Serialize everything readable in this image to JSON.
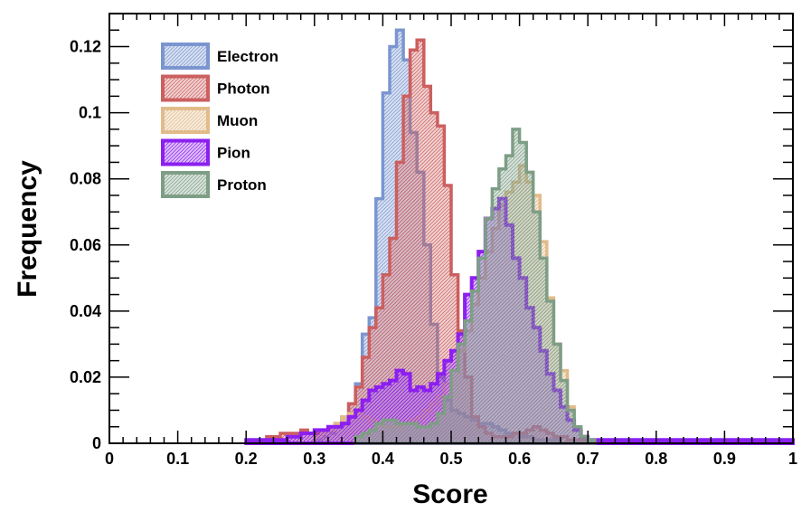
{
  "chart_data": {
    "type": "histogram",
    "title": "",
    "xlabel": "Score",
    "ylabel": "Frequency",
    "xlim": [
      0,
      1
    ],
    "ylim": [
      0,
      0.13
    ],
    "bin_width": 0.01,
    "x_ticks": [
      {
        "value": 0,
        "label": "0"
      },
      {
        "value": 0.1,
        "label": "0.1"
      },
      {
        "value": 0.2,
        "label": "0.2"
      },
      {
        "value": 0.3,
        "label": "0.3"
      },
      {
        "value": 0.4,
        "label": "0.4"
      },
      {
        "value": 0.5,
        "label": "0.5"
      },
      {
        "value": 0.6,
        "label": "0.6"
      },
      {
        "value": 0.7,
        "label": "0.7"
      },
      {
        "value": 0.8,
        "label": "0.8"
      },
      {
        "value": 0.9,
        "label": "0.9"
      },
      {
        "value": 1,
        "label": "1"
      }
    ],
    "y_ticks": [
      {
        "value": 0,
        "label": "0"
      },
      {
        "value": 0.02,
        "label": "0.02"
      },
      {
        "value": 0.04,
        "label": "0.04"
      },
      {
        "value": 0.06,
        "label": "0.06"
      },
      {
        "value": 0.08,
        "label": "0.08"
      },
      {
        "value": 0.1,
        "label": "0.1"
      },
      {
        "value": 0.12,
        "label": "0.12"
      }
    ],
    "legend_position": "top-left",
    "grid": false,
    "series": [
      {
        "name": "Electron",
        "color": "#7b96cf",
        "bins_start": 0.3,
        "values": [
          0.001,
          0.002,
          0.003,
          0.005,
          0.008,
          0.012,
          0.018,
          0.033,
          0.038,
          0.074,
          0.106,
          0.12,
          0.125,
          0.116,
          0.094,
          0.082,
          0.06,
          0.036,
          0.02,
          0.013,
          0.01,
          0.009,
          0.008,
          0.007,
          0.006,
          0.006,
          0.005,
          0.004,
          0.003,
          0.003,
          0.002,
          0.002,
          0.001,
          0.001,
          0.001,
          0.001
        ]
      },
      {
        "name": "Photon",
        "color": "#cc5f5f",
        "bins_start": 0.22,
        "values": [
          0.001,
          0.002,
          0.002,
          0.003,
          0.003,
          0.003,
          0.004,
          0.003,
          0.003,
          0.004,
          0.005,
          0.006,
          0.008,
          0.012,
          0.017,
          0.026,
          0.035,
          0.041,
          0.051,
          0.062,
          0.085,
          0.105,
          0.119,
          0.122,
          0.108,
          0.1,
          0.096,
          0.078,
          0.051,
          0.034,
          0.02,
          0.008,
          0.005,
          0.003,
          0.002,
          0.002,
          0.002,
          0.003,
          0.003,
          0.004,
          0.005,
          0.004,
          0.003,
          0.002,
          0.002,
          0.001,
          0.001,
          0.001,
          0.001,
          0.001,
          0.001,
          0.001
        ]
      },
      {
        "name": "Muon",
        "color": "#e2bb8a",
        "bins_start": 0.3,
        "values": [
          0.002,
          0.003,
          0.004,
          0.006,
          0.008,
          0.009,
          0.009,
          0.008,
          0.007,
          0.006,
          0.005,
          0.005,
          0.005,
          0.006,
          0.007,
          0.008,
          0.01,
          0.012,
          0.014,
          0.018,
          0.022,
          0.028,
          0.034,
          0.042,
          0.05,
          0.058,
          0.065,
          0.072,
          0.076,
          0.079,
          0.084,
          0.079,
          0.075,
          0.061,
          0.044,
          0.03,
          0.022,
          0.011,
          0.004,
          0.002,
          0.001,
          0.001
        ]
      },
      {
        "name": "Pion",
        "color": "#8c1ff0",
        "bins_start": 0.2,
        "values": [
          0.001,
          0.001,
          0.001,
          0.001,
          0.001,
          0.001,
          0.002,
          0.002,
          0.003,
          0.003,
          0.004,
          0.004,
          0.005,
          0.005,
          0.006,
          0.008,
          0.01,
          0.013,
          0.016,
          0.017,
          0.018,
          0.019,
          0.022,
          0.021,
          0.016,
          0.017,
          0.016,
          0.018,
          0.021,
          0.025,
          0.028,
          0.033,
          0.045,
          0.05,
          0.058,
          0.068,
          0.071,
          0.074,
          0.066,
          0.056,
          0.05,
          0.041,
          0.035,
          0.028,
          0.021,
          0.016,
          0.011,
          0.007,
          0.004,
          0.002,
          0.001,
          0.001,
          0.001,
          0.001,
          0.001,
          0.001,
          0.001,
          0.001,
          0.001,
          0.001,
          0.001,
          0.001,
          0.001,
          0.001,
          0.001,
          0.001,
          0.001,
          0.001,
          0.001,
          0.001,
          0.001,
          0.001,
          0.001,
          0.001,
          0.001,
          0.001,
          0.001,
          0.001,
          0.001,
          0.001
        ]
      },
      {
        "name": "Proton",
        "color": "#7e9e86",
        "bins_start": 0.36,
        "values": [
          0.002,
          0.003,
          0.004,
          0.006,
          0.007,
          0.007,
          0.006,
          0.006,
          0.006,
          0.005,
          0.005,
          0.006,
          0.009,
          0.014,
          0.022,
          0.03,
          0.037,
          0.046,
          0.056,
          0.068,
          0.077,
          0.083,
          0.087,
          0.095,
          0.091,
          0.082,
          0.07,
          0.056,
          0.043,
          0.03,
          0.019,
          0.01,
          0.005,
          0.002,
          0.001
        ]
      }
    ]
  }
}
